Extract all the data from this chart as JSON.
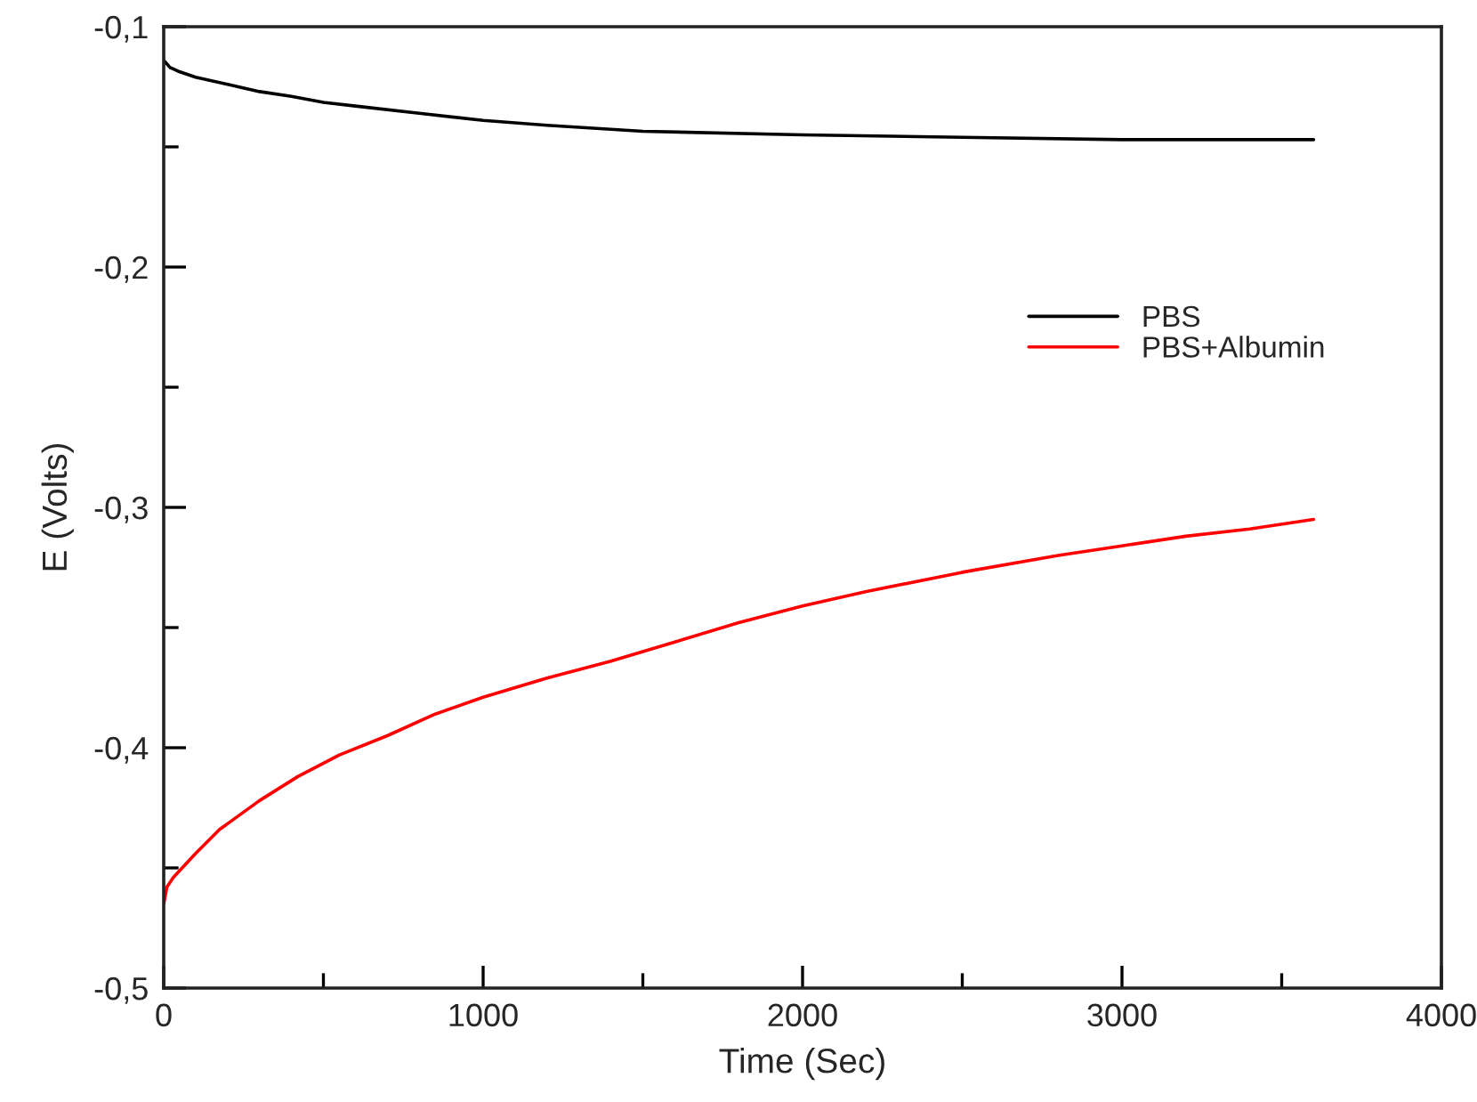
{
  "chart_data": {
    "type": "line",
    "xlabel": "Time (Sec)",
    "ylabel": "E (Volts)",
    "xlim": [
      0,
      4000
    ],
    "ylim": [
      -0.5,
      -0.1
    ],
    "xticks": [
      0,
      {
        "value": 500,
        "label": null
      },
      1000,
      {
        "value": 1500,
        "label": null
      },
      2000,
      {
        "value": 2500,
        "label": null
      },
      3000,
      {
        "value": 3500,
        "label": null
      },
      4000
    ],
    "yticks": [
      {
        "value": -0.5,
        "label": "-0,5"
      },
      {
        "value": -0.45,
        "label": null
      },
      {
        "value": -0.4,
        "label": "-0,4"
      },
      {
        "value": -0.35,
        "label": null
      },
      {
        "value": -0.3,
        "label": "-0,3"
      },
      {
        "value": -0.25,
        "label": null
      },
      {
        "value": -0.2,
        "label": "-0,2"
      },
      {
        "value": -0.15,
        "label": null
      },
      {
        "value": -0.1,
        "label": "-0,1"
      }
    ],
    "grid": false,
    "legend": "right",
    "line_style": "solid",
    "series": [
      {
        "name": "PBS",
        "color": "#000000",
        "x": [
          0,
          20,
          45,
          100,
          200,
          300,
          400,
          500,
          600,
          800,
          1000,
          1200,
          1500,
          2000,
          2500,
          3000,
          3600
        ],
        "values": [
          -0.114,
          -0.117,
          -0.1185,
          -0.121,
          -0.124,
          -0.127,
          -0.129,
          -0.1315,
          -0.133,
          -0.136,
          -0.139,
          -0.141,
          -0.1435,
          -0.145,
          -0.146,
          -0.147,
          -0.147
        ]
      },
      {
        "name": "PBS+Albumin",
        "color": "#ff0000",
        "x": [
          0,
          10,
          30,
          100,
          175,
          300,
          420,
          550,
          700,
          850,
          1000,
          1200,
          1400,
          1600,
          1800,
          2000,
          2200,
          2500,
          2800,
          3000,
          3200,
          3400,
          3600
        ],
        "values": [
          -0.465,
          -0.458,
          -0.454,
          -0.444,
          -0.434,
          -0.422,
          -0.412,
          -0.403,
          -0.395,
          -0.386,
          -0.379,
          -0.371,
          -0.364,
          -0.356,
          -0.348,
          -0.341,
          -0.335,
          -0.327,
          -0.32,
          -0.316,
          -0.312,
          -0.309,
          -0.305
        ]
      }
    ]
  }
}
